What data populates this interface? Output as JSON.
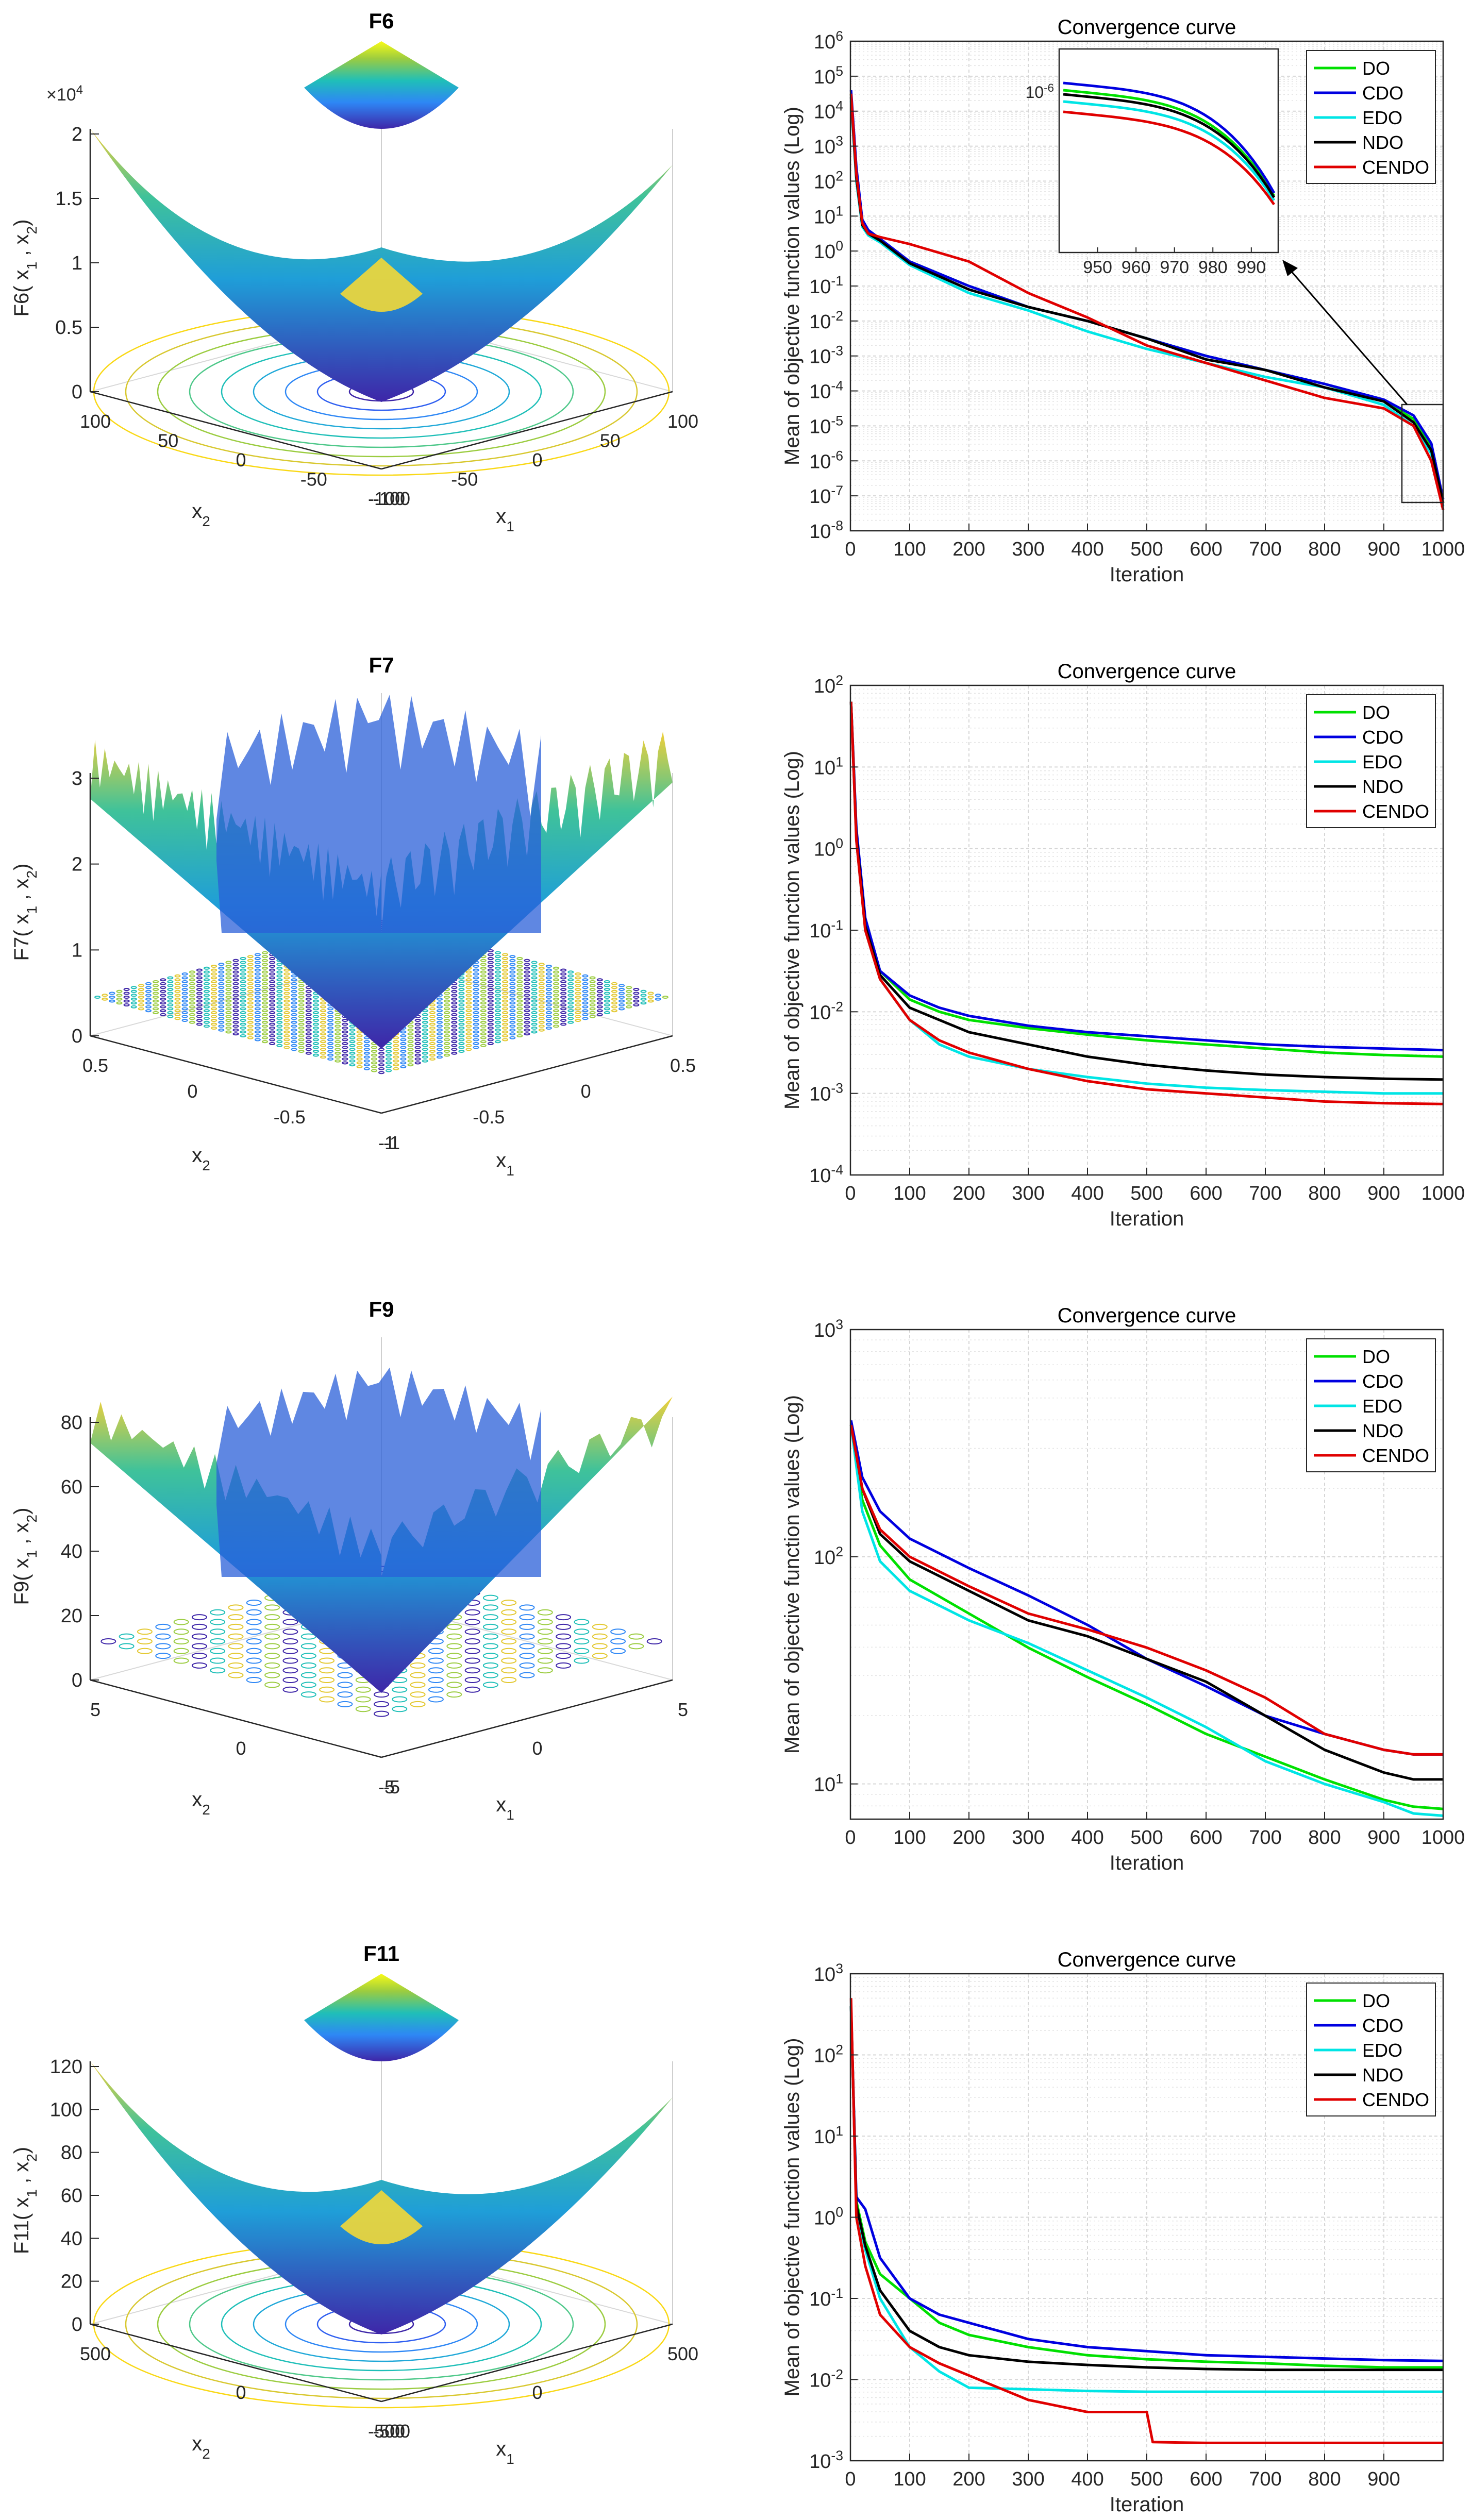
{
  "panels3d": [
    {
      "title": "F6",
      "zlabel": "F6( x",
      "xlabel": "x",
      "ylabel": "x",
      "zticks": [
        "0",
        "0.5",
        "1",
        "1.5",
        "2"
      ],
      "zmult": "×10",
      "zexp": "4",
      "xticks": [
        "-100",
        "-50",
        "0",
        "50",
        "100"
      ],
      "yticks": [
        "-100",
        "-50",
        "0",
        "50",
        "100"
      ],
      "style": "bowl"
    },
    {
      "title": "F7",
      "zlabel": "F7( x",
      "xlabel": "x",
      "ylabel": "x",
      "zticks": [
        "0",
        "1",
        "2",
        "3"
      ],
      "zmult": "",
      "zexp": "",
      "xticks": [
        "-1",
        "-0.5",
        "0",
        "0.5"
      ],
      "yticks": [
        "-1",
        "-0.5",
        "0",
        "0.5"
      ],
      "style": "noisy"
    },
    {
      "title": "F9",
      "zlabel": "F9( x",
      "xlabel": "x",
      "ylabel": "x",
      "zticks": [
        "0",
        "20",
        "40",
        "60",
        "80"
      ],
      "zmult": "",
      "zexp": "",
      "xticks": [
        "-5",
        "0",
        "5"
      ],
      "yticks": [
        "-5",
        "0",
        "5"
      ],
      "style": "wavy"
    },
    {
      "title": "F11",
      "zlabel": "F11( x",
      "xlabel": "x",
      "ylabel": "x",
      "zticks": [
        "0",
        "20",
        "40",
        "60",
        "80",
        "100",
        "120"
      ],
      "zmult": "",
      "zexp": "",
      "xticks": [
        "-500",
        "0",
        "500"
      ],
      "yticks": [
        "-500",
        "0",
        "500"
      ],
      "style": "bowl2"
    }
  ],
  "chart_data": [
    {
      "type": "line",
      "title": "Convergence curve",
      "xlabel": "Iteration",
      "ylabel": "Mean of objective function values (Log)",
      "yscale": "log",
      "xlim": [
        0,
        1000
      ],
      "ylim_exp": [
        -8,
        6
      ],
      "xticks": [
        "0",
        "100",
        "200",
        "300",
        "400",
        "500",
        "600",
        "700",
        "800",
        "900",
        "1000"
      ],
      "inset": {
        "xlim": [
          940,
          997
        ],
        "label": "10",
        "label_exp": "-6",
        "xticks": [
          "950",
          "960",
          "970",
          "980",
          "990"
        ]
      },
      "series": [
        {
          "name": "DO",
          "color": "#00e000",
          "x": [
            1,
            10,
            20,
            30,
            50,
            100,
            200,
            300,
            400,
            500,
            600,
            700,
            800,
            900,
            950,
            980,
            1000
          ],
          "log10": [
            4.5,
            2.2,
            0.8,
            0.55,
            0.3,
            -0.3,
            -1,
            -1.6,
            -2,
            -2.5,
            -3,
            -3.4,
            -3.8,
            -4.3,
            -4.8,
            -5.6,
            -7.2
          ]
        },
        {
          "name": "CDO",
          "color": "#0000e0",
          "x": [
            1,
            10,
            20,
            30,
            50,
            100,
            200,
            300,
            400,
            500,
            600,
            700,
            800,
            900,
            950,
            980,
            1000
          ],
          "log10": [
            4.6,
            2.4,
            0.9,
            0.6,
            0.35,
            -0.3,
            -1,
            -1.6,
            -2,
            -2.5,
            -3,
            -3.4,
            -3.8,
            -4.25,
            -4.7,
            -5.5,
            -7.1
          ]
        },
        {
          "name": "EDO",
          "color": "#00e5e5",
          "x": [
            1,
            10,
            20,
            30,
            50,
            100,
            200,
            300,
            400,
            500,
            600,
            700,
            800,
            900,
            950,
            980,
            1000
          ],
          "log10": [
            4.3,
            2,
            0.7,
            0.45,
            0.25,
            -0.4,
            -1.2,
            -1.7,
            -2.3,
            -2.8,
            -3.2,
            -3.6,
            -3.9,
            -4.4,
            -5,
            -5.8,
            -7.3
          ]
        },
        {
          "name": "NDO",
          "color": "#000000",
          "x": [
            1,
            10,
            20,
            30,
            50,
            100,
            200,
            300,
            400,
            500,
            600,
            700,
            800,
            900,
            950,
            980,
            1000
          ],
          "log10": [
            4.4,
            2.1,
            0.75,
            0.5,
            0.3,
            -0.35,
            -1.1,
            -1.6,
            -2,
            -2.5,
            -3.1,
            -3.4,
            -3.9,
            -4.3,
            -4.9,
            -5.7,
            -7.2
          ]
        },
        {
          "name": "CENDO",
          "color": "#e00000",
          "x": [
            1,
            10,
            20,
            30,
            50,
            100,
            200,
            300,
            400,
            500,
            600,
            700,
            800,
            900,
            950,
            980,
            1000
          ],
          "log10": [
            4.5,
            2.2,
            0.8,
            0.5,
            0.4,
            0.2,
            -0.3,
            -1.2,
            -1.9,
            -2.7,
            -3.2,
            -3.7,
            -4.2,
            -4.5,
            -5,
            -6,
            -7.4
          ]
        }
      ]
    },
    {
      "type": "line",
      "title": "Convergence curve",
      "xlabel": "Iteration",
      "ylabel": "Mean of objective function values (Log)",
      "yscale": "log",
      "xlim": [
        0,
        1000
      ],
      "ylim_exp": [
        -4,
        2
      ],
      "xticks": [
        "0",
        "100",
        "200",
        "300",
        "400",
        "500",
        "600",
        "700",
        "800",
        "900",
        "1000"
      ],
      "series": [
        {
          "name": "DO",
          "color": "#00e000",
          "x": [
            1,
            10,
            25,
            50,
            100,
            150,
            200,
            300,
            400,
            500,
            600,
            700,
            800,
            900,
            1000
          ],
          "log10": [
            1.8,
            0.2,
            -0.9,
            -1.5,
            -1.85,
            -2,
            -2.1,
            -2.2,
            -2.28,
            -2.35,
            -2.4,
            -2.45,
            -2.5,
            -2.53,
            -2.55
          ]
        },
        {
          "name": "CDO",
          "color": "#0000e0",
          "x": [
            1,
            10,
            25,
            50,
            100,
            150,
            200,
            300,
            400,
            500,
            600,
            700,
            800,
            900,
            1000
          ],
          "log10": [
            1.8,
            0.25,
            -0.85,
            -1.5,
            -1.8,
            -1.95,
            -2.05,
            -2.17,
            -2.25,
            -2.3,
            -2.35,
            -2.4,
            -2.43,
            -2.45,
            -2.47
          ]
        },
        {
          "name": "EDO",
          "color": "#00e5e5",
          "x": [
            1,
            10,
            25,
            50,
            100,
            150,
            200,
            300,
            400,
            500,
            600,
            700,
            800,
            900,
            1000
          ],
          "log10": [
            1.8,
            0.1,
            -1,
            -1.6,
            -2.1,
            -2.4,
            -2.55,
            -2.7,
            -2.8,
            -2.88,
            -2.93,
            -2.96,
            -2.98,
            -3,
            -3
          ]
        },
        {
          "name": "NDO",
          "color": "#000000",
          "x": [
            1,
            10,
            25,
            50,
            100,
            150,
            200,
            300,
            400,
            500,
            600,
            700,
            800,
            900,
            1000
          ],
          "log10": [
            1.8,
            0.15,
            -0.95,
            -1.55,
            -1.95,
            -2.1,
            -2.25,
            -2.4,
            -2.55,
            -2.65,
            -2.72,
            -2.77,
            -2.8,
            -2.82,
            -2.83
          ]
        },
        {
          "name": "CENDO",
          "color": "#e00000",
          "x": [
            1,
            10,
            25,
            50,
            100,
            150,
            200,
            300,
            400,
            500,
            600,
            700,
            800,
            900,
            1000
          ],
          "log10": [
            1.8,
            0.1,
            -1,
            -1.6,
            -2.1,
            -2.35,
            -2.5,
            -2.7,
            -2.85,
            -2.95,
            -3,
            -3.05,
            -3.1,
            -3.12,
            -3.13
          ]
        }
      ]
    },
    {
      "type": "line",
      "title": "Convergence curve",
      "xlabel": "Iteration",
      "ylabel": "Mean of objective function values (Log)",
      "yscale": "log",
      "xlim": [
        0,
        1000
      ],
      "ylim_exp": [
        0.845,
        3
      ],
      "yticks_exp": [
        1,
        2,
        3
      ],
      "xticks": [
        "0",
        "100",
        "200",
        "300",
        "400",
        "500",
        "600",
        "700",
        "800",
        "900",
        "1000"
      ],
      "series": [
        {
          "name": "DO",
          "color": "#00e000",
          "x": [
            1,
            20,
            50,
            100,
            200,
            300,
            400,
            500,
            600,
            700,
            800,
            900,
            950,
            1000
          ],
          "log10": [
            2.58,
            2.25,
            2.05,
            1.9,
            1.75,
            1.6,
            1.47,
            1.35,
            1.22,
            1.12,
            1.02,
            0.93,
            0.9,
            0.89
          ]
        },
        {
          "name": "CDO",
          "color": "#0000e0",
          "x": [
            1,
            20,
            50,
            100,
            200,
            300,
            400,
            500,
            600,
            700,
            800,
            900,
            950,
            1000
          ],
          "log10": [
            2.6,
            2.35,
            2.2,
            2.08,
            1.95,
            1.83,
            1.7,
            1.55,
            1.43,
            1.3,
            1.22,
            1.15,
            1.13,
            1.13
          ]
        },
        {
          "name": "EDO",
          "color": "#00e5e5",
          "x": [
            1,
            20,
            50,
            100,
            200,
            300,
            400,
            500,
            600,
            700,
            800,
            900,
            950,
            1000
          ],
          "log10": [
            2.58,
            2.2,
            1.98,
            1.85,
            1.72,
            1.62,
            1.5,
            1.38,
            1.25,
            1.1,
            1,
            0.92,
            0.87,
            0.86
          ]
        },
        {
          "name": "NDO",
          "color": "#000000",
          "x": [
            1,
            20,
            50,
            100,
            200,
            300,
            400,
            500,
            600,
            700,
            800,
            900,
            950,
            1000
          ],
          "log10": [
            2.58,
            2.3,
            2.1,
            1.98,
            1.85,
            1.72,
            1.65,
            1.55,
            1.45,
            1.3,
            1.15,
            1.05,
            1.02,
            1.02
          ]
        },
        {
          "name": "CENDO",
          "color": "#e00000",
          "x": [
            1,
            20,
            50,
            100,
            200,
            300,
            400,
            500,
            600,
            700,
            800,
            900,
            950,
            1000
          ],
          "log10": [
            2.58,
            2.3,
            2.12,
            2,
            1.87,
            1.75,
            1.68,
            1.6,
            1.5,
            1.38,
            1.22,
            1.15,
            1.13,
            1.13
          ]
        }
      ]
    },
    {
      "type": "line",
      "title": "Convergence curve",
      "xlabel": "Iteration",
      "ylabel": "Mean of objective function values (Log)",
      "yscale": "log",
      "xlim": [
        0,
        1000
      ],
      "ylim_exp": [
        -3,
        3
      ],
      "xticks": [
        "0",
        "100",
        "200",
        "300",
        "400",
        "500",
        "600",
        "700",
        "800",
        "900"
      ],
      "series": [
        {
          "name": "DO",
          "color": "#00e000",
          "x": [
            1,
            10,
            25,
            50,
            100,
            150,
            200,
            300,
            400,
            500,
            600,
            700,
            800,
            900,
            1000
          ],
          "log10": [
            2.6,
            0.2,
            -0.3,
            -0.7,
            -1,
            -1.3,
            -1.45,
            -1.6,
            -1.7,
            -1.75,
            -1.78,
            -1.8,
            -1.83,
            -1.85,
            -1.85
          ]
        },
        {
          "name": "CDO",
          "color": "#0000e0",
          "x": [
            1,
            10,
            25,
            50,
            100,
            150,
            200,
            300,
            400,
            500,
            600,
            700,
            800,
            900,
            1000
          ],
          "log10": [
            2.6,
            0.25,
            0.1,
            -0.5,
            -1,
            -1.2,
            -1.3,
            -1.5,
            -1.6,
            -1.65,
            -1.7,
            -1.72,
            -1.74,
            -1.76,
            -1.77
          ]
        },
        {
          "name": "EDO",
          "color": "#00e5e5",
          "x": [
            1,
            10,
            25,
            50,
            100,
            150,
            200,
            300,
            400,
            500,
            600,
            700,
            800,
            900,
            1000
          ],
          "log10": [
            2.6,
            0.1,
            -0.4,
            -1,
            -1.6,
            -1.9,
            -2.1,
            -2.12,
            -2.14,
            -2.15,
            -2.15,
            -2.15,
            -2.15,
            -2.15,
            -2.15
          ]
        },
        {
          "name": "NDO",
          "color": "#000000",
          "x": [
            1,
            10,
            25,
            50,
            100,
            150,
            200,
            300,
            400,
            500,
            600,
            700,
            800,
            900,
            1000
          ],
          "log10": [
            2.6,
            0.15,
            -0.35,
            -0.9,
            -1.4,
            -1.6,
            -1.7,
            -1.78,
            -1.82,
            -1.85,
            -1.87,
            -1.88,
            -1.88,
            -1.88,
            -1.88
          ]
        },
        {
          "name": "CENDO",
          "color": "#e00000",
          "x": [
            1,
            10,
            25,
            50,
            100,
            150,
            200,
            250,
            300,
            400,
            500,
            510,
            600,
            700,
            800,
            900,
            1000
          ],
          "log10": [
            2.7,
            0,
            -0.6,
            -1.2,
            -1.6,
            -1.8,
            -1.95,
            -2.1,
            -2.25,
            -2.4,
            -2.4,
            -2.77,
            -2.78,
            -2.78,
            -2.78,
            -2.78,
            -2.78
          ]
        }
      ]
    }
  ]
}
